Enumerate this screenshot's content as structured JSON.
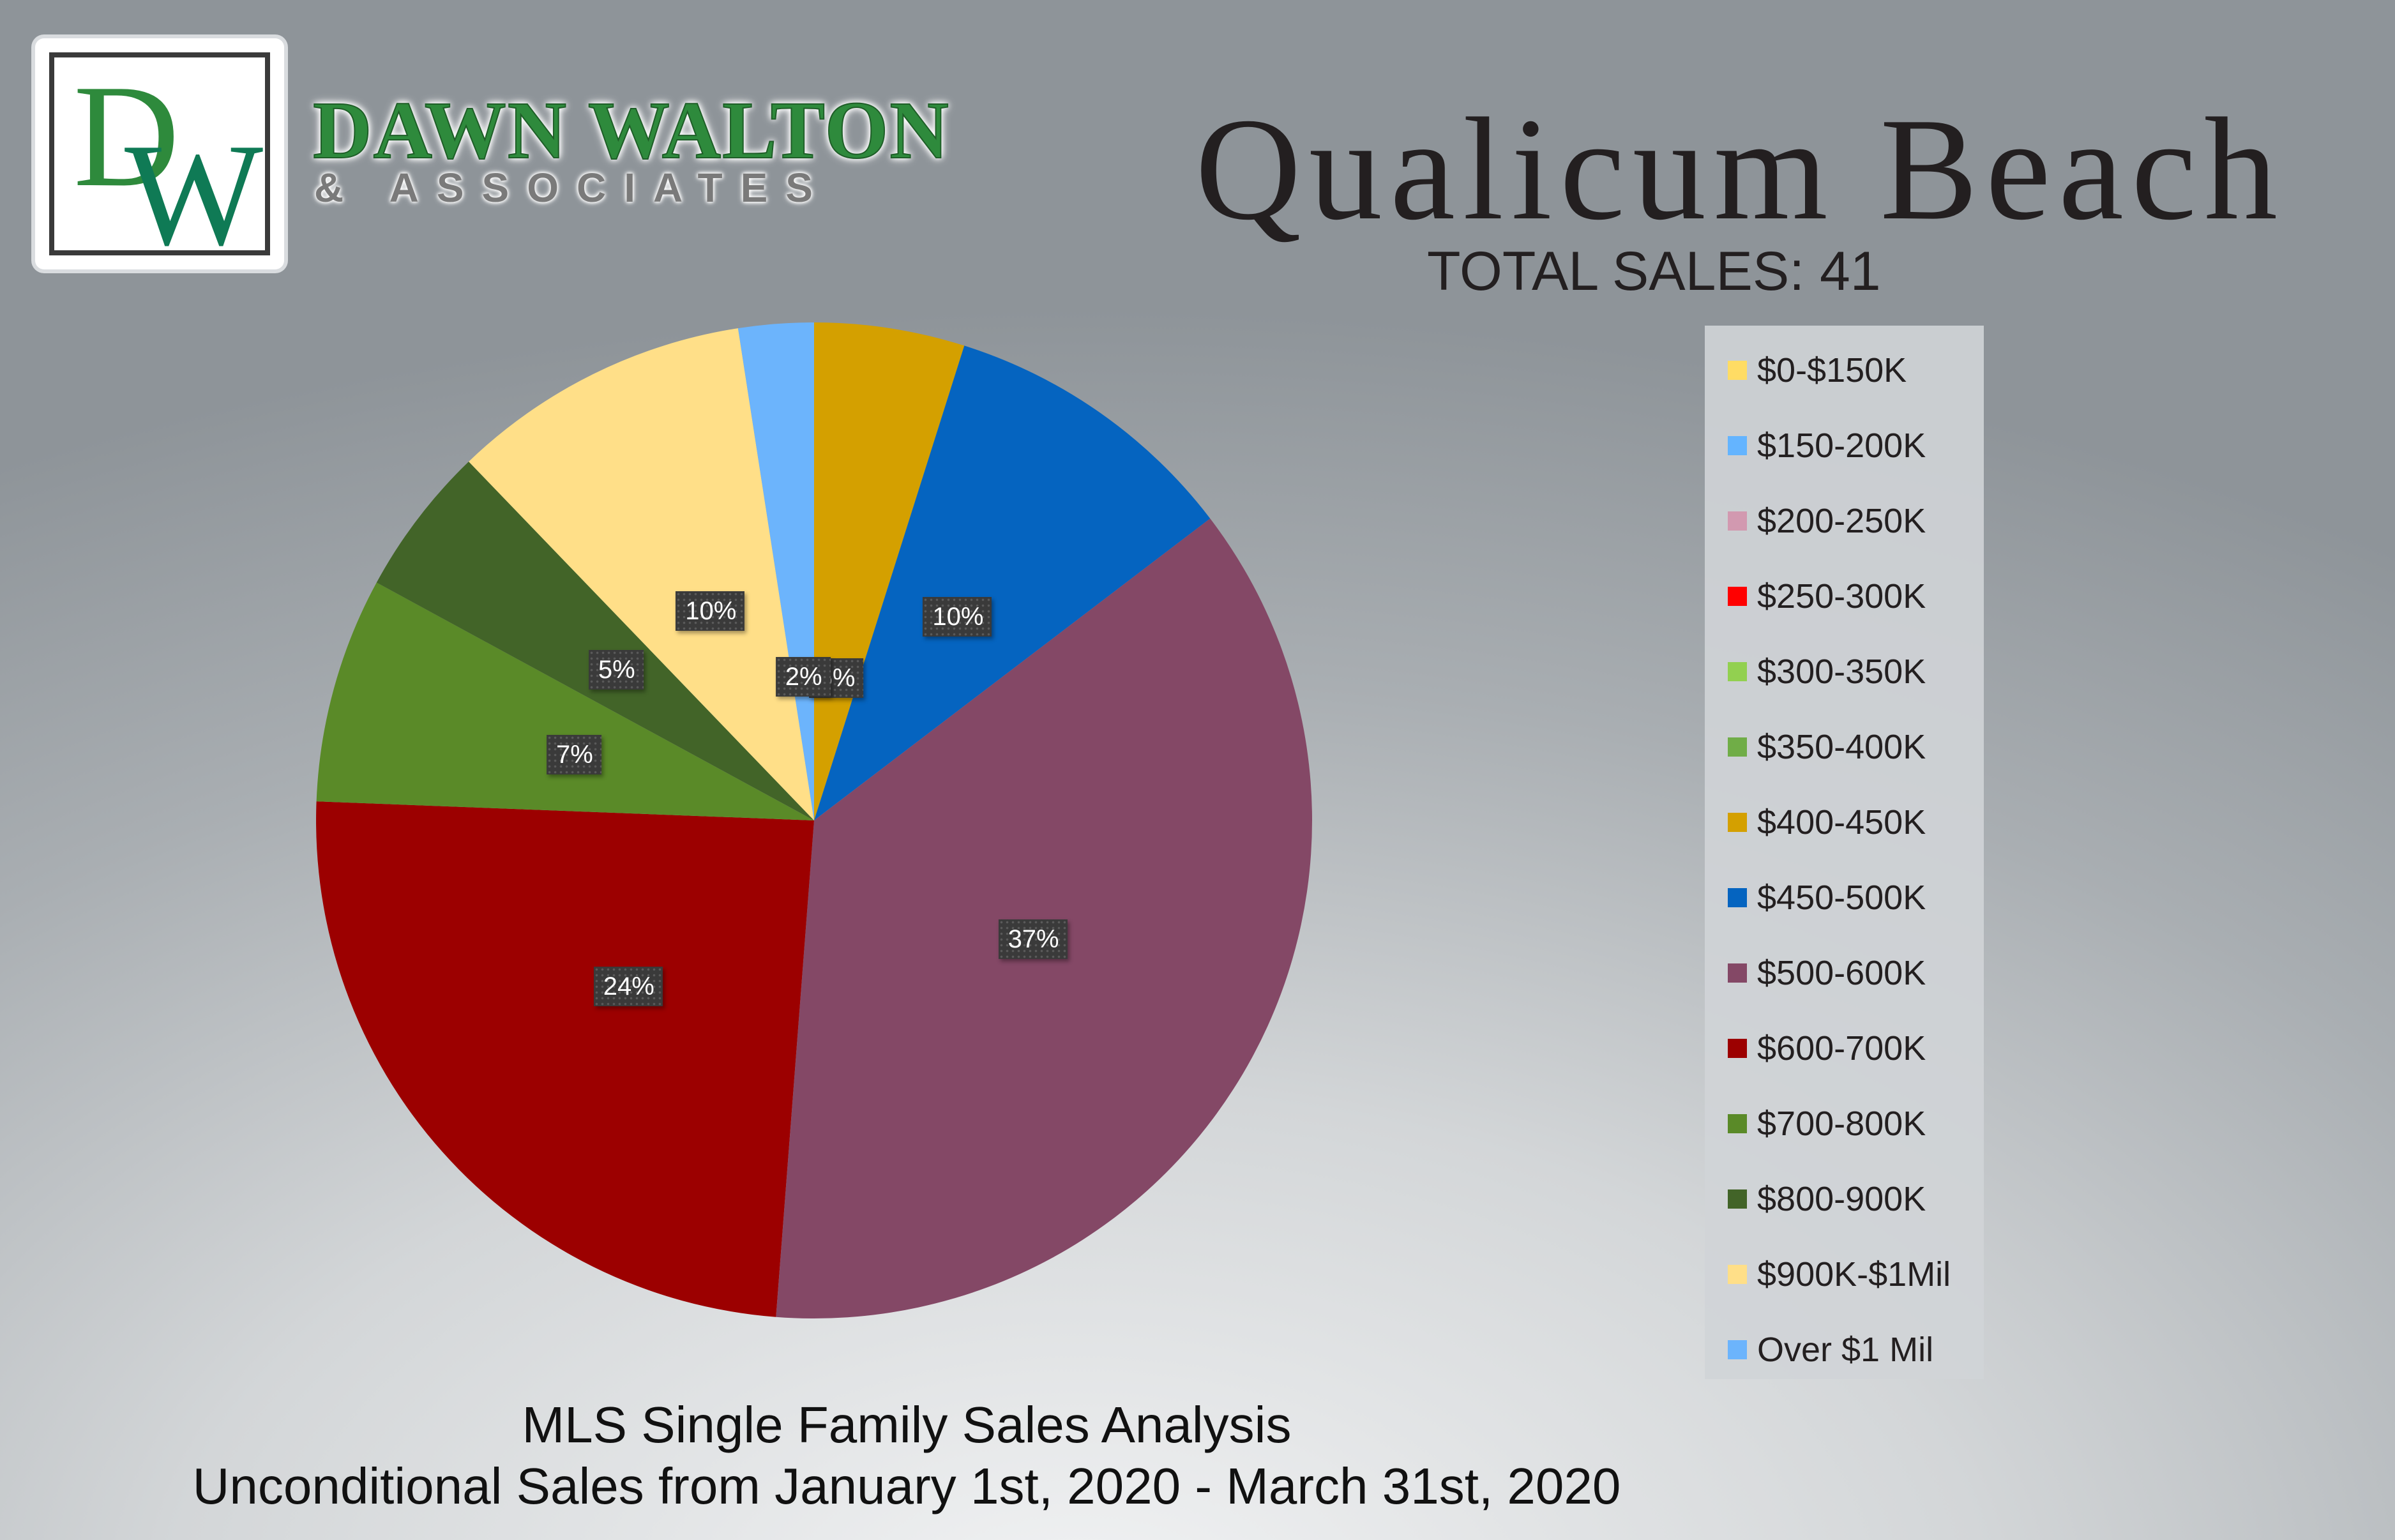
{
  "logo": {
    "monogram": "DW"
  },
  "brand": {
    "name": "DAWN WALTON",
    "sub": "& ASSOCIATES"
  },
  "header": {
    "title": "Qualicum Beach",
    "total_sales": "TOTAL SALES: 41"
  },
  "footer": {
    "line1": "MLS Single Family Sales Analysis",
    "line2": "Unconditional Sales from January 1st, 2020 - March 31st, 2020"
  },
  "chart_data": {
    "type": "pie",
    "title": "Qualicum Beach",
    "start": "12 o'clock",
    "direction": "clockwise",
    "legend": "right",
    "slices": [
      {
        "label": "$0-$150K",
        "count": 0,
        "percent_label": "",
        "color": "#ffdc64"
      },
      {
        "label": "$150-200K",
        "count": 0,
        "percent_label": "",
        "color": "#64b4ff"
      },
      {
        "label": "$200-250K",
        "count": 0,
        "percent_label": "",
        "color": "#d299b0"
      },
      {
        "label": "$250-300K",
        "count": 0,
        "percent_label": "",
        "color": "#ff0000"
      },
      {
        "label": "$300-350K",
        "count": 0,
        "percent_label": "",
        "color": "#92d050"
      },
      {
        "label": "$350-400K",
        "count": 0,
        "percent_label": "",
        "color": "#70ad47"
      },
      {
        "label": "$400-450K",
        "count": 2,
        "percent_label": "5%",
        "color": "#d4a000"
      },
      {
        "label": "$450-500K",
        "count": 4,
        "percent_label": "10%",
        "color": "#0564c0"
      },
      {
        "label": "$500-600K",
        "count": 15,
        "percent_label": "37%",
        "color": "#844866"
      },
      {
        "label": "$600-700K",
        "count": 10,
        "percent_label": "24%",
        "color": "#9c0000"
      },
      {
        "label": "$700-800K",
        "count": 3,
        "percent_label": "7%",
        "color": "#5a8a28"
      },
      {
        "label": "$800-900K",
        "count": 2,
        "percent_label": "5%",
        "color": "#426428"
      },
      {
        "label": "$900K-$1Mil",
        "count": 4,
        "percent_label": "10%",
        "color": "#ffdf88"
      },
      {
        "label": "Over $1 Mil",
        "count": 1,
        "percent_label": "2%",
        "color": "#6cb4fc"
      }
    ]
  }
}
